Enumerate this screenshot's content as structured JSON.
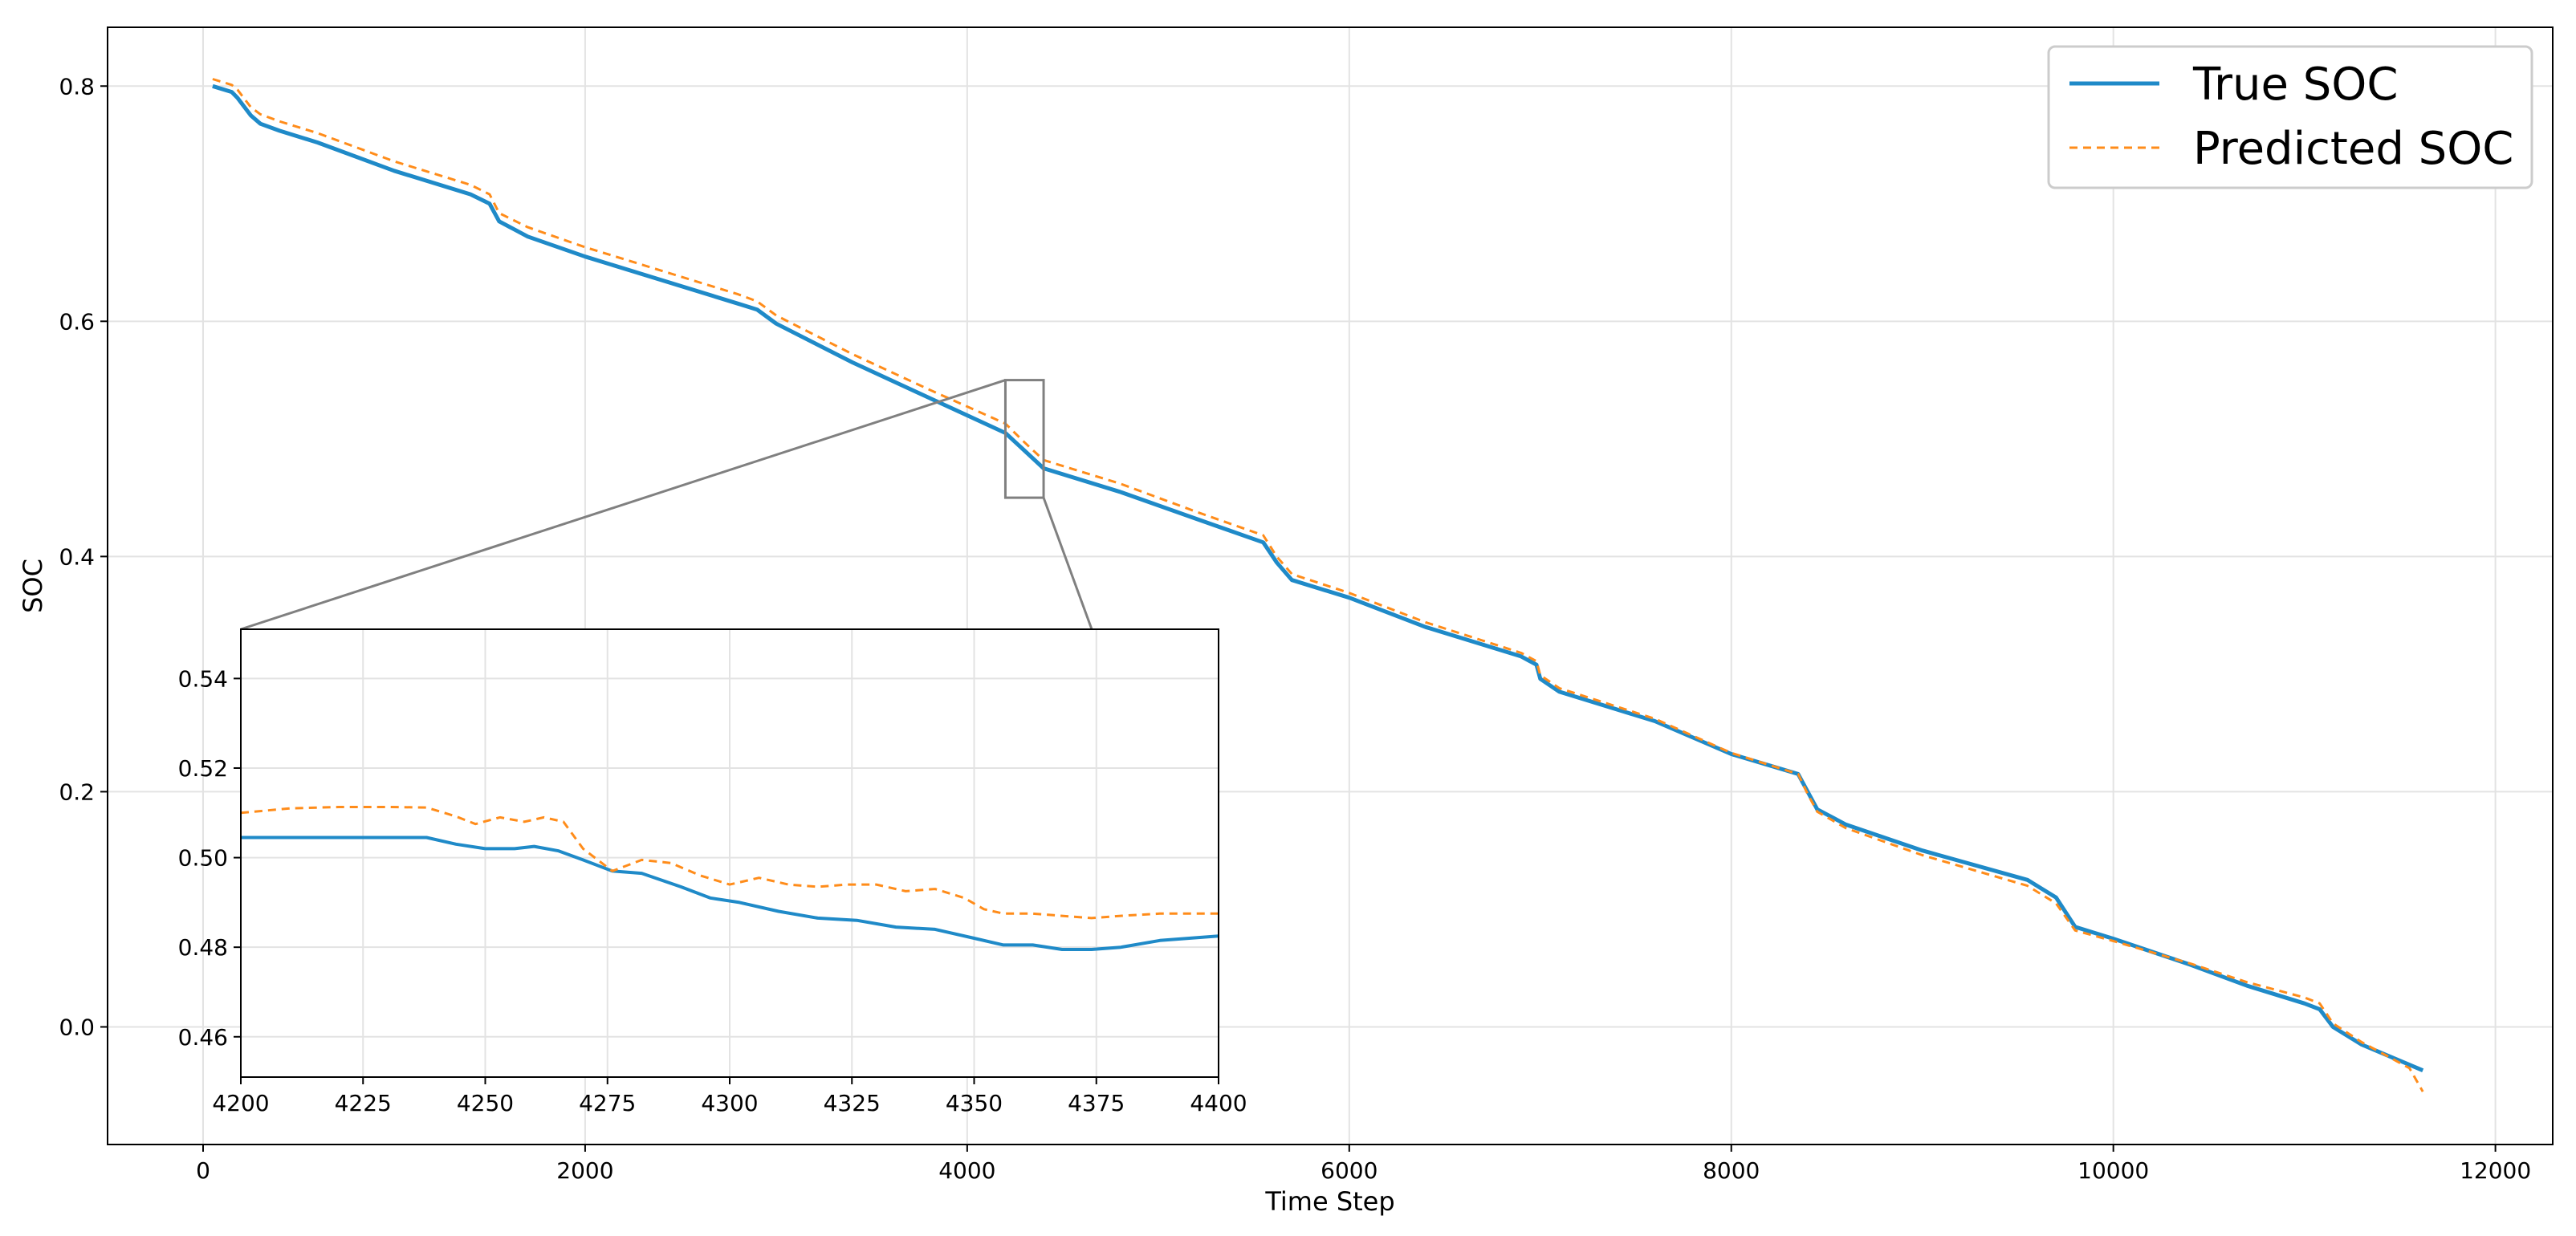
{
  "chart_data": [
    {
      "type": "line",
      "xlabel": "Time Step",
      "ylabel": "SOC",
      "xlim": [
        -500,
        12300
      ],
      "ylim": [
        -0.1,
        0.85
      ],
      "xticks": [
        0,
        2000,
        4000,
        6000,
        8000,
        10000,
        12000
      ],
      "yticks": [
        0.0,
        0.2,
        0.4,
        0.6,
        0.8
      ],
      "xtick_labels": [
        "0",
        "2000",
        "4000",
        "6000",
        "8000",
        "10000",
        "12000"
      ],
      "ytick_labels": [
        "0.0",
        "0.2",
        "0.4",
        "0.6",
        "0.8"
      ],
      "grid": true,
      "legend_position": "top-right",
      "series": [
        {
          "name": "True SOC",
          "color": "#1f8ac8",
          "style": "solid",
          "x": [
            50,
            150,
            180,
            250,
            300,
            400,
            600,
            1000,
            1400,
            1500,
            1550,
            1700,
            2000,
            2400,
            2800,
            2900,
            3000,
            3400,
            3800,
            4200,
            4300,
            4400,
            4800,
            5200,
            5550,
            5620,
            5700,
            6000,
            6400,
            6900,
            6980,
            7000,
            7100,
            7600,
            8000,
            8350,
            8400,
            8450,
            8600,
            9000,
            9550,
            9700,
            9800,
            10000,
            10400,
            10700,
            11000,
            11080,
            11150,
            11300,
            11620
          ],
          "y": [
            0.8,
            0.795,
            0.79,
            0.775,
            0.768,
            0.762,
            0.752,
            0.728,
            0.708,
            0.7,
            0.685,
            0.672,
            0.655,
            0.635,
            0.615,
            0.61,
            0.598,
            0.565,
            0.535,
            0.505,
            0.49,
            0.475,
            0.455,
            0.432,
            0.412,
            0.395,
            0.38,
            0.365,
            0.34,
            0.315,
            0.308,
            0.296,
            0.285,
            0.26,
            0.232,
            0.215,
            0.2,
            0.185,
            0.172,
            0.15,
            0.125,
            0.11,
            0.085,
            0.075,
            0.053,
            0.035,
            0.02,
            0.015,
            0.0,
            -0.015,
            -0.037
          ]
        },
        {
          "name": "Predicted SOC",
          "color": "#ff8c1a",
          "style": "dashed",
          "x": [
            50,
            150,
            180,
            250,
            300,
            400,
            600,
            1000,
            1400,
            1500,
            1550,
            1700,
            2000,
            2400,
            2800,
            2900,
            3000,
            3400,
            3800,
            4200,
            4300,
            4400,
            4800,
            5200,
            5550,
            5620,
            5700,
            6000,
            6400,
            6900,
            6980,
            7000,
            7100,
            7600,
            8000,
            8350,
            8400,
            8450,
            8600,
            9000,
            9550,
            9700,
            9800,
            10000,
            10400,
            10700,
            11000,
            11080,
            11150,
            11300,
            11550,
            11620
          ],
          "y": [
            0.806,
            0.801,
            0.797,
            0.782,
            0.776,
            0.77,
            0.76,
            0.736,
            0.716,
            0.708,
            0.692,
            0.68,
            0.663,
            0.643,
            0.623,
            0.617,
            0.605,
            0.572,
            0.542,
            0.513,
            0.497,
            0.482,
            0.462,
            0.438,
            0.418,
            0.4,
            0.385,
            0.369,
            0.344,
            0.318,
            0.311,
            0.299,
            0.288,
            0.262,
            0.233,
            0.215,
            0.198,
            0.183,
            0.169,
            0.146,
            0.12,
            0.105,
            0.082,
            0.073,
            0.054,
            0.038,
            0.025,
            0.02,
            0.003,
            -0.013,
            -0.035,
            -0.055
          ]
        }
      ],
      "zoom_box": {
        "x": [
          4200,
          4400
        ],
        "y": [
          0.45,
          0.55
        ]
      }
    },
    {
      "type": "line",
      "title": "",
      "xlim": [
        4200,
        4400
      ],
      "ylim": [
        0.451,
        0.551
      ],
      "xticks": [
        4200,
        4225,
        4250,
        4275,
        4300,
        4325,
        4350,
        4375,
        4400
      ],
      "yticks": [
        0.46,
        0.48,
        0.5,
        0.52,
        0.54
      ],
      "xtick_labels": [
        "4200",
        "4225",
        "4250",
        "4275",
        "4300",
        "4325",
        "4350",
        "4375",
        "4400"
      ],
      "ytick_labels": [
        "0.46",
        "0.48",
        "0.50",
        "0.52",
        "0.54"
      ],
      "grid": true,
      "series": [
        {
          "name": "True SOC",
          "color": "#1f8ac8",
          "style": "solid",
          "x": [
            4200,
            4210,
            4220,
            4230,
            4238,
            4244,
            4250,
            4256,
            4260,
            4265,
            4270,
            4276,
            4282,
            4290,
            4296,
            4302,
            4310,
            4318,
            4326,
            4334,
            4342,
            4350,
            4356,
            4362,
            4368,
            4374,
            4380,
            4388,
            4394,
            4400
          ],
          "y": [
            0.5045,
            0.5045,
            0.5045,
            0.5045,
            0.5045,
            0.503,
            0.502,
            0.502,
            0.5025,
            0.5015,
            0.4995,
            0.497,
            0.4965,
            0.4935,
            0.491,
            0.49,
            0.488,
            0.4865,
            0.486,
            0.4845,
            0.484,
            0.482,
            0.4805,
            0.4805,
            0.4795,
            0.4795,
            0.48,
            0.4815,
            0.482,
            0.4825
          ]
        },
        {
          "name": "Predicted SOC",
          "color": "#ff8c1a",
          "style": "dashed",
          "x": [
            4200,
            4210,
            4220,
            4230,
            4238,
            4244,
            4248,
            4253,
            4258,
            4262,
            4266,
            4270,
            4276,
            4282,
            4288,
            4294,
            4300,
            4306,
            4312,
            4318,
            4324,
            4330,
            4336,
            4342,
            4348,
            4352,
            4356,
            4362,
            4368,
            4374,
            4380,
            4388,
            4394,
            4400
          ],
          "y": [
            0.51,
            0.511,
            0.5113,
            0.5113,
            0.5112,
            0.5092,
            0.5075,
            0.509,
            0.508,
            0.509,
            0.508,
            0.502,
            0.497,
            0.4995,
            0.4988,
            0.496,
            0.494,
            0.4955,
            0.494,
            0.4935,
            0.494,
            0.494,
            0.4925,
            0.493,
            0.491,
            0.4885,
            0.4875,
            0.4875,
            0.487,
            0.4865,
            0.487,
            0.4875,
            0.4875,
            0.4875
          ]
        }
      ]
    }
  ]
}
